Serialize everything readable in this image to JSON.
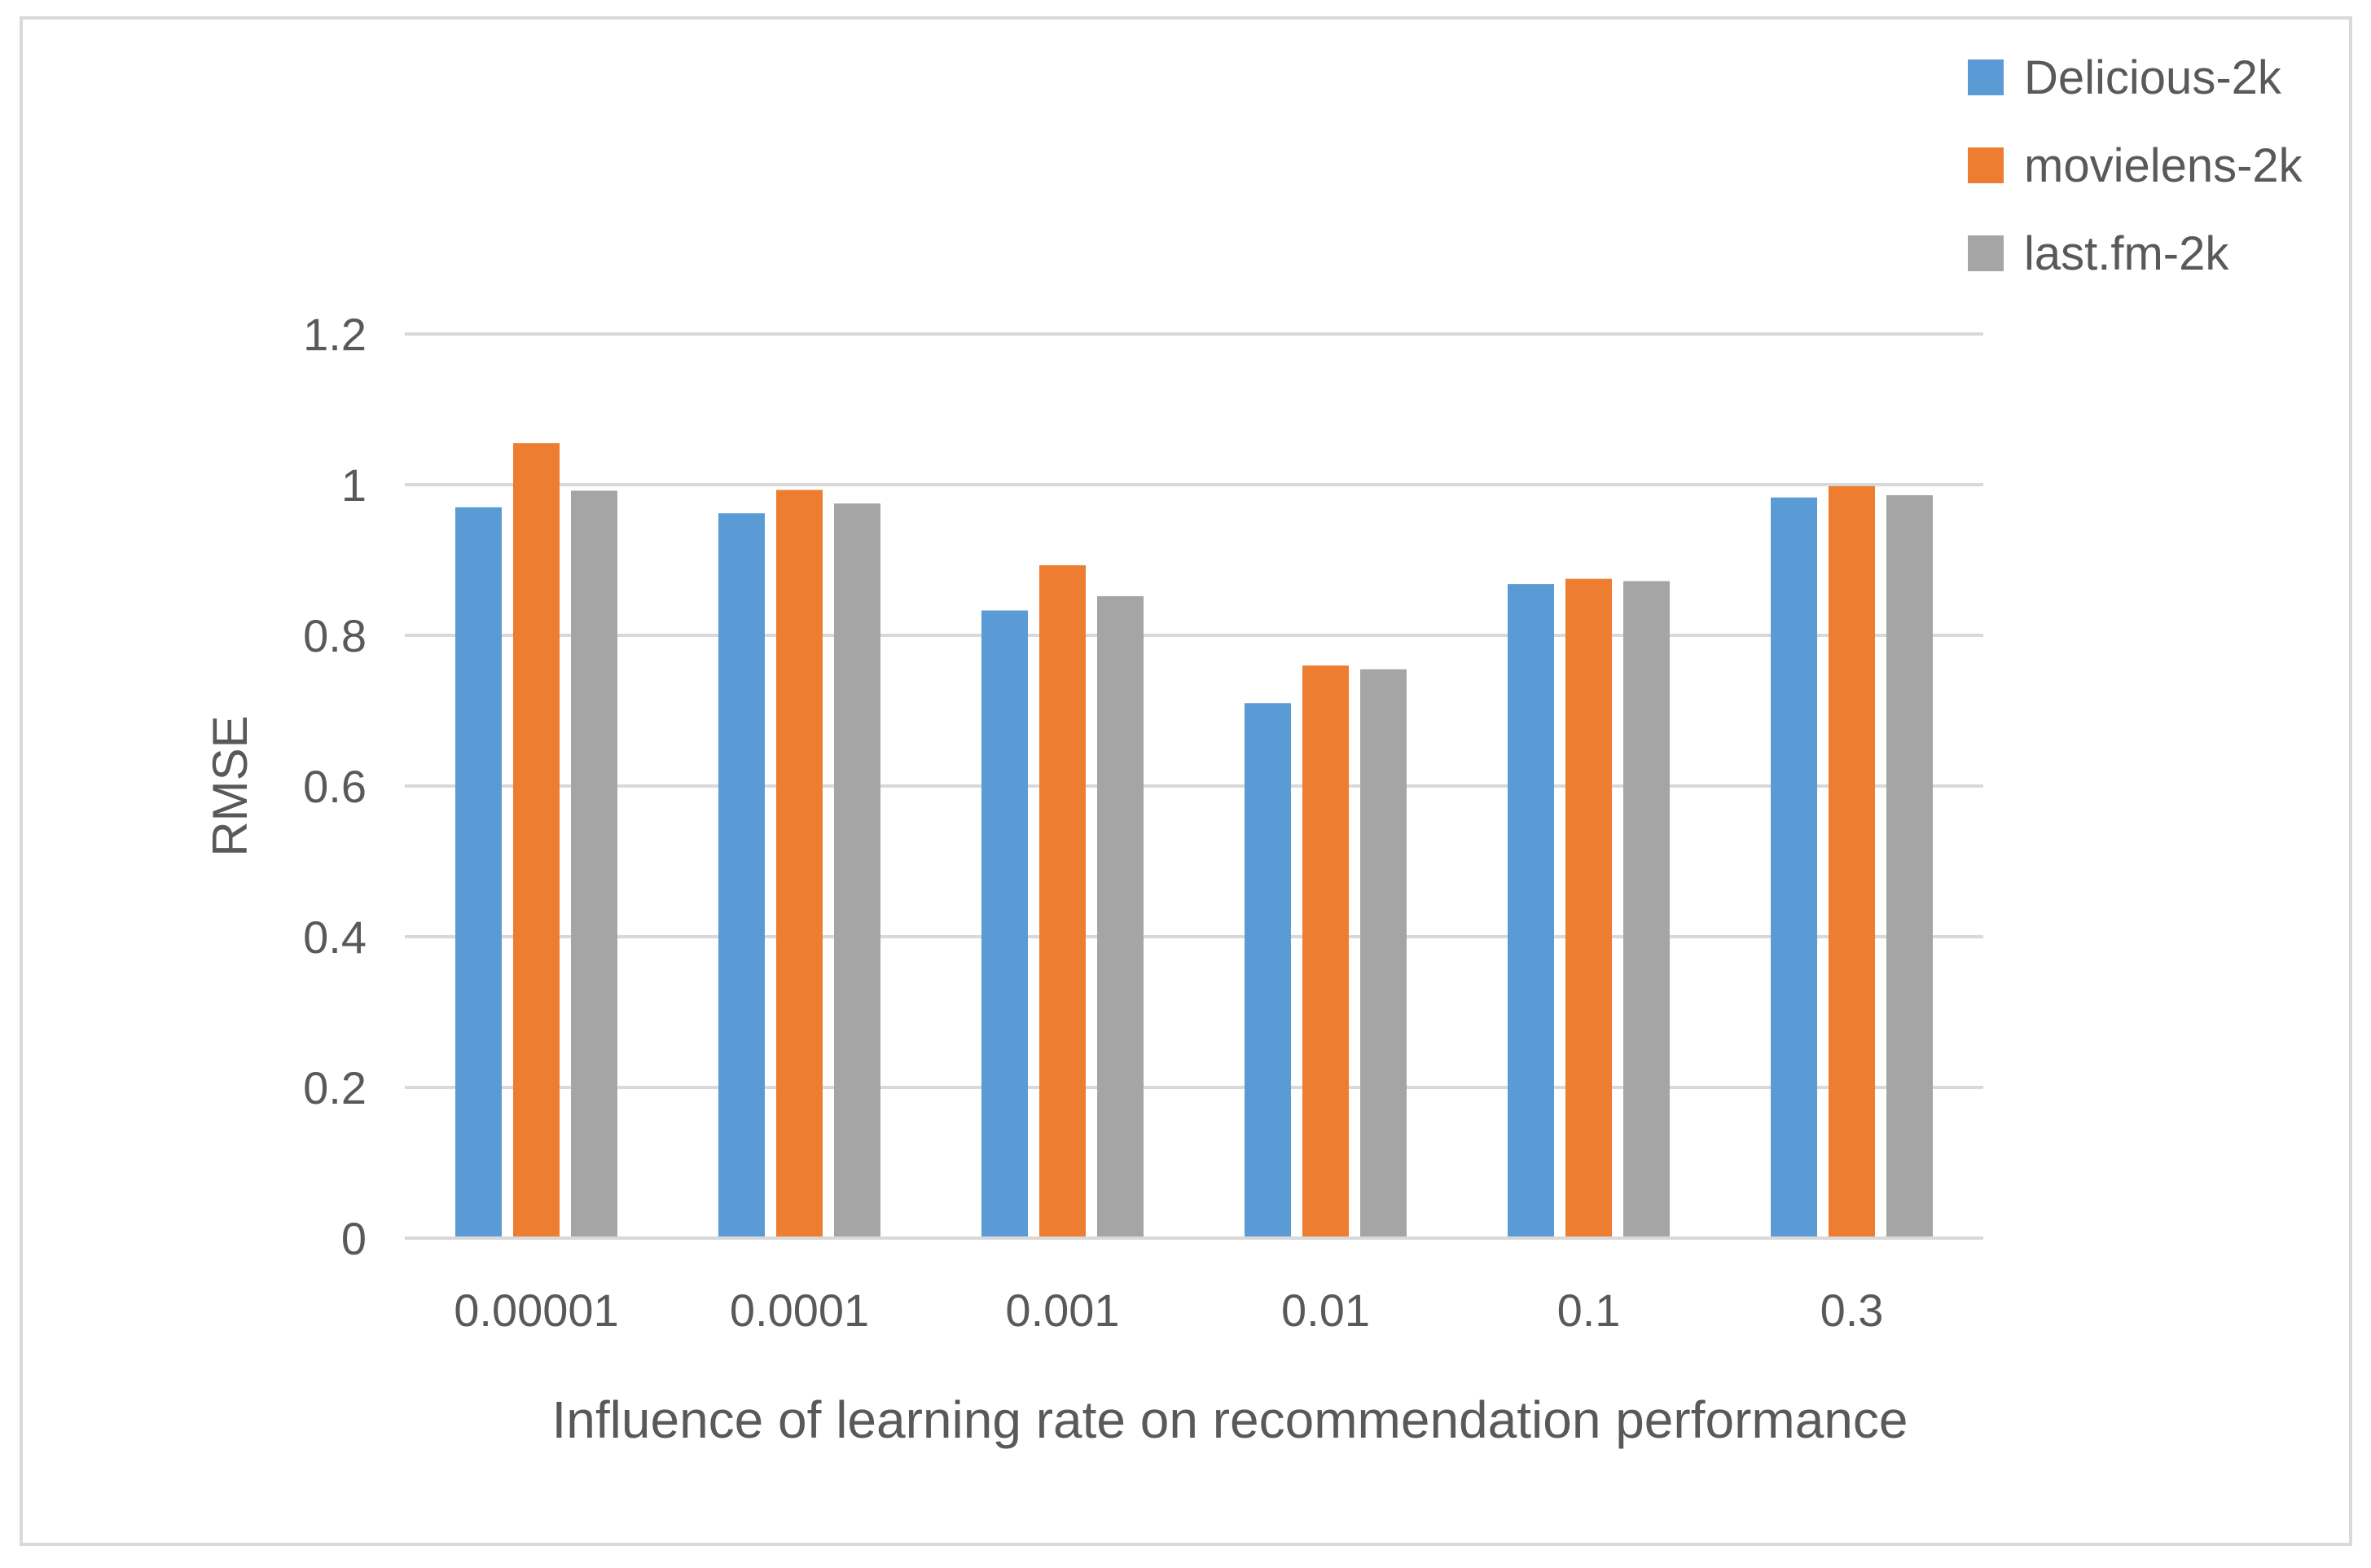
{
  "chart_data": {
    "type": "bar",
    "title": "",
    "xlabel": "Influence of learning rate  on recommendation performance",
    "ylabel": "RMSE",
    "ylim": [
      0,
      1.2
    ],
    "yticks": [
      "0",
      "0.2",
      "0.4",
      "0.6",
      "0.8",
      "1",
      "1.2"
    ],
    "ytick_values": [
      0,
      0.2,
      0.4,
      0.6,
      0.8,
      1.0,
      1.2
    ],
    "grid": true,
    "legend_position": "top-right",
    "categories": [
      "0.00001",
      "0.0001",
      "0.001",
      "0.01",
      "0.1",
      "0.3"
    ],
    "series": [
      {
        "name": "Delicious-2k",
        "color": "#5b9bd5",
        "values": [
          0.97,
          0.962,
          0.833,
          0.71,
          0.868,
          0.983
        ]
      },
      {
        "name": "movielens-2k",
        "color": "#ed7d31",
        "values": [
          1.055,
          0.993,
          0.893,
          0.76,
          0.875,
          0.998
        ]
      },
      {
        "name": "last.fm-2k",
        "color": "#a5a5a5",
        "values": [
          0.992,
          0.975,
          0.852,
          0.755,
          0.872,
          0.986
        ]
      }
    ]
  }
}
